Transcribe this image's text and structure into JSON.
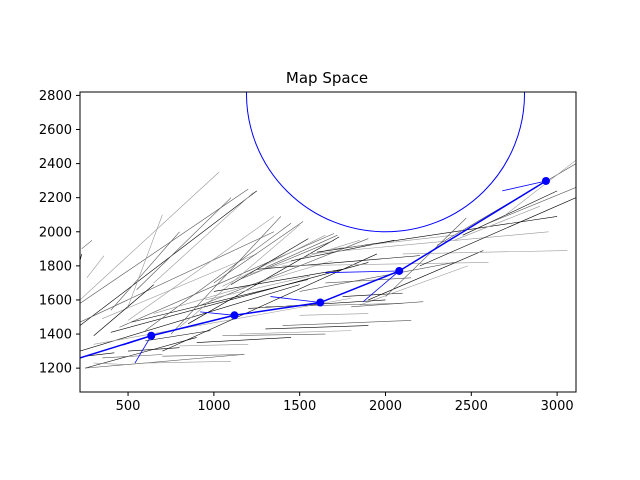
{
  "chart_data": {
    "type": "line",
    "title": "Map Space",
    "xlabel": "",
    "ylabel": "",
    "xlim": [
      220,
      3110
    ],
    "ylim": [
      1060,
      2820
    ],
    "xticks": [
      500,
      1000,
      1500,
      2000,
      2500,
      3000
    ],
    "yticks": [
      1200,
      1400,
      1600,
      1800,
      2000,
      2200,
      2400,
      2600,
      2800
    ],
    "grid": false,
    "legend": "none",
    "colors": {
      "path": "#0000ff",
      "obstacle": "#0000ff",
      "tree": "#000000"
    },
    "obstacle_circle": {
      "center": [
        2000,
        2810
      ],
      "radius": 810
    },
    "path": {
      "x": [
        220,
        635,
        1120,
        1620,
        2080,
        2935
      ],
      "y": [
        1260,
        1390,
        1510,
        1585,
        1770,
        2298
      ]
    },
    "path_branches": [
      [
        [
          635,
          1390
        ],
        [
          470,
          1335
        ]
      ],
      [
        [
          635,
          1390
        ],
        [
          540,
          1230
        ]
      ],
      [
        [
          1120,
          1510
        ],
        [
          920,
          1530
        ]
      ],
      [
        [
          1620,
          1585
        ],
        [
          1330,
          1620
        ]
      ],
      [
        [
          2080,
          1770
        ],
        [
          1650,
          1760
        ]
      ],
      [
        [
          2080,
          1770
        ],
        [
          1870,
          1590
        ]
      ],
      [
        [
          2935,
          2298
        ],
        [
          2680,
          2240
        ]
      ]
    ],
    "tree_edges": [
      [
        [
          220,
          1450
        ],
        [
          1250,
          2240
        ]
      ],
      [
        [
          220,
          1580
        ],
        [
          1200,
          2250
        ]
      ],
      [
        [
          220,
          1600
        ],
        [
          1030,
          2350
        ]
      ],
      [
        [
          220,
          1830
        ],
        [
          230,
          1870
        ]
      ],
      [
        [
          230,
          1900
        ],
        [
          290,
          1950
        ]
      ],
      [
        [
          260,
          1730
        ],
        [
          360,
          1860
        ]
      ],
      [
        [
          220,
          1300
        ],
        [
          1500,
          1690
        ]
      ],
      [
        [
          220,
          1470
        ],
        [
          1350,
          2000
        ]
      ],
      [
        [
          350,
          1490
        ],
        [
          1250,
          1870
        ]
      ],
      [
        [
          250,
          1200
        ],
        [
          900,
          1380
        ]
      ],
      [
        [
          250,
          1200
        ],
        [
          1170,
          1280
        ]
      ],
      [
        [
          300,
          1340
        ],
        [
          1800,
          1610
        ]
      ],
      [
        [
          400,
          1410
        ],
        [
          1900,
          1820
        ]
      ],
      [
        [
          450,
          1440
        ],
        [
          1700,
          1990
        ]
      ],
      [
        [
          500,
          1480
        ],
        [
          1350,
          2090
        ]
      ],
      [
        [
          520,
          1470
        ],
        [
          1550,
          1720
        ]
      ],
      [
        [
          600,
          1420
        ],
        [
          1450,
          2050
        ]
      ],
      [
        [
          650,
          1520
        ],
        [
          1690,
          1830
        ]
      ],
      [
        [
          700,
          1300
        ],
        [
          1950,
          1870
        ]
      ],
      [
        [
          750,
          1400
        ],
        [
          1390,
          2090
        ]
      ],
      [
        [
          800,
          1440
        ],
        [
          1500,
          2040
        ]
      ],
      [
        [
          850,
          1460
        ],
        [
          1730,
          1970
        ]
      ],
      [
        [
          900,
          1560
        ],
        [
          1900,
          1960
        ]
      ],
      [
        [
          950,
          1600
        ],
        [
          1560,
          1740
        ]
      ],
      [
        [
          1000,
          1650
        ],
        [
          1750,
          1780
        ]
      ],
      [
        [
          1000,
          1700
        ],
        [
          1520,
          2060
        ]
      ],
      [
        [
          1050,
          1680
        ],
        [
          1650,
          1980
        ]
      ],
      [
        [
          1100,
          1690
        ],
        [
          1550,
          1960
        ]
      ],
      [
        [
          1150,
          1720
        ],
        [
          1700,
          1950
        ]
      ],
      [
        [
          1200,
          1750
        ],
        [
          1850,
          1950
        ]
      ],
      [
        [
          1250,
          1780
        ],
        [
          2200,
          1860
        ]
      ],
      [
        [
          1300,
          1790
        ],
        [
          1720,
          1980
        ]
      ],
      [
        [
          1400,
          1800
        ],
        [
          2600,
          1820
        ]
      ],
      [
        [
          1450,
          1830
        ],
        [
          2050,
          1950
        ]
      ],
      [
        [
          1500,
          1650
        ],
        [
          2400,
          1820
        ]
      ],
      [
        [
          1550,
          1870
        ],
        [
          2950,
          2000
        ]
      ],
      [
        [
          1600,
          1880
        ],
        [
          3000,
          2090
        ]
      ],
      [
        [
          1650,
          1700
        ],
        [
          2150,
          1730
        ]
      ],
      [
        [
          1700,
          1900
        ],
        [
          2400,
          1980
        ]
      ],
      [
        [
          1750,
          1620
        ],
        [
          2100,
          1640
        ]
      ],
      [
        [
          1800,
          1560
        ],
        [
          2220,
          1590
        ]
      ],
      [
        [
          1850,
          1570
        ],
        [
          2480,
          1800
        ]
      ],
      [
        [
          1900,
          1600
        ],
        [
          2570,
          1890
        ]
      ],
      [
        [
          2000,
          1620
        ],
        [
          2470,
          2080
        ]
      ],
      [
        [
          2100,
          1870
        ],
        [
          3060,
          1890
        ]
      ],
      [
        [
          2200,
          1800
        ],
        [
          3110,
          2200
        ]
      ],
      [
        [
          2300,
          1920
        ],
        [
          3110,
          2400
        ]
      ],
      [
        [
          2400,
          1950
        ],
        [
          2900,
          2150
        ]
      ],
      [
        [
          2450,
          1980
        ],
        [
          3000,
          2240
        ]
      ],
      [
        [
          2600,
          2050
        ],
        [
          3110,
          2260
        ]
      ],
      [
        [
          2700,
          2100
        ],
        [
          3110,
          2420
        ]
      ],
      [
        [
          600,
          1360
        ],
        [
          980,
          1420
        ]
      ],
      [
        [
          700,
          1270
        ],
        [
          1180,
          1280
        ]
      ],
      [
        [
          800,
          1330
        ],
        [
          1200,
          1340
        ]
      ],
      [
        [
          900,
          1350
        ],
        [
          1450,
          1380
        ]
      ],
      [
        [
          1050,
          1390
        ],
        [
          1650,
          1400
        ]
      ],
      [
        [
          1150,
          1400
        ],
        [
          1800,
          1420
        ]
      ],
      [
        [
          1300,
          1430
        ],
        [
          1900,
          1450
        ]
      ],
      [
        [
          1400,
          1450
        ],
        [
          2150,
          1480
        ]
      ],
      [
        [
          1500,
          1510
        ],
        [
          1900,
          1520
        ]
      ],
      [
        [
          1200,
          1550
        ],
        [
          2000,
          1600
        ]
      ],
      [
        [
          1300,
          1560
        ],
        [
          2100,
          1580
        ]
      ],
      [
        [
          600,
          1230
        ],
        [
          1100,
          1240
        ]
      ],
      [
        [
          500,
          1300
        ],
        [
          800,
          1320
        ]
      ],
      [
        [
          350,
          1260
        ],
        [
          700,
          1280
        ]
      ],
      [
        [
          300,
          1230
        ],
        [
          500,
          1220
        ]
      ],
      [
        [
          250,
          1270
        ],
        [
          420,
          1290
        ]
      ],
      [
        [
          400,
          1540
        ],
        [
          800,
          2000
        ]
      ],
      [
        [
          500,
          1560
        ],
        [
          700,
          2100
        ]
      ],
      [
        [
          300,
          1390
        ],
        [
          650,
          1690
        ]
      ],
      [
        [
          550,
          1660
        ],
        [
          1100,
          2200
        ]
      ],
      [
        [
          650,
          1700
        ],
        [
          1230,
          2230
        ]
      ]
    ]
  }
}
